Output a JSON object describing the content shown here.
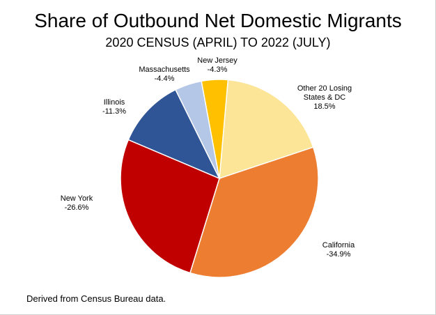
{
  "chart_data": {
    "type": "pie",
    "title": "Share of Outbound Net Domestic Migrants",
    "subtitle": "2020 CENSUS (APRIL) TO 2022 (JULY)",
    "slices": [
      {
        "name": "Other 20 Losing States & DC",
        "value": 18.5,
        "label": "18.5%",
        "color": "#fde598"
      },
      {
        "name": "California",
        "value": 34.9,
        "label": "-34.9%",
        "color": "#ed7d31"
      },
      {
        "name": "New York",
        "value": 26.6,
        "label": "-26.6%",
        "color": "#c00000"
      },
      {
        "name": "Illinois",
        "value": 11.3,
        "label": "-11.3%",
        "color": "#2f5597"
      },
      {
        "name": "Massachusetts",
        "value": 4.4,
        "label": "-4.4%",
        "color": "#b4c7e7"
      },
      {
        "name": "New Jersey",
        "value": 4.3,
        "label": "-4.3%",
        "color": "#ffc000"
      }
    ],
    "note": "Derived from Census Bureau data."
  }
}
